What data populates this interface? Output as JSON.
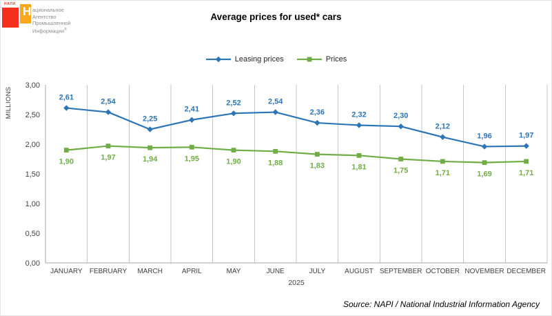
{
  "logo": {
    "abbr": "НАПИ",
    "big_letter": "Н",
    "line1": "ациональное",
    "line2": "Агентство",
    "line3": "Промышленной",
    "line4": "Информации",
    "reg": "®",
    "red_color": "#F2301B",
    "orange_color": "#FAA71B"
  },
  "title": "Average prices for used* cars",
  "source": "Source: NAPI / National Industrial Information Agency",
  "chart_data": {
    "type": "line",
    "title": "Average prices for used* cars",
    "categories": [
      "JANUARY",
      "FEBRUARY",
      "MARCH",
      "APRIL",
      "MAY",
      "JUNE",
      "JULY",
      "AUGUST",
      "SEPTEMBER",
      "OCTOBER",
      "NOVEMBER",
      "DECEMBER"
    ],
    "x_group_label": "2025",
    "ylabel": "MILLIONS",
    "ylim": [
      0,
      3.0
    ],
    "ytick_step": 0.5,
    "ytick_labels": [
      "0,00",
      "0,50",
      "1,00",
      "1,50",
      "2,00",
      "2,50",
      "3,00"
    ],
    "grid": "vertical-only",
    "grid_color": "#C6C6C6",
    "axis_color": "#A6A6A6",
    "tick_label_color": "#3F3F3F",
    "legend_position": "top",
    "series": [
      {
        "name": "Leasing prices",
        "color": "#2E75B6",
        "marker": "diamond",
        "label_position": "above",
        "values": [
          2.61,
          2.54,
          2.25,
          2.41,
          2.52,
          2.54,
          2.36,
          2.32,
          2.3,
          2.12,
          1.96,
          1.97
        ],
        "labels": [
          "2,61",
          "2,54",
          "2,25",
          "2,41",
          "2,52",
          "2,54",
          "2,36",
          "2,32",
          "2,30",
          "2,12",
          "1,96",
          "1,97"
        ]
      },
      {
        "name": "Prices",
        "color": "#70AD47",
        "marker": "square",
        "label_position": "below",
        "values": [
          1.9,
          1.97,
          1.94,
          1.95,
          1.9,
          1.88,
          1.83,
          1.81,
          1.75,
          1.71,
          1.69,
          1.71
        ],
        "labels": [
          "1,90",
          "1,97",
          "1,94",
          "1,95",
          "1,90",
          "1,88",
          "1,83",
          "1,81",
          "1,75",
          "1,71",
          "1,69",
          "1,71"
        ]
      }
    ]
  }
}
